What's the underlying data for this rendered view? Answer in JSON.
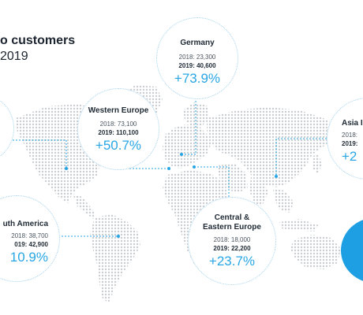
{
  "title": {
    "line1": "o customers",
    "line2": "2019"
  },
  "regions": [
    {
      "id": "germany",
      "name": "Germany",
      "y2018": "2018: 23,300",
      "y2019": "2019: 40,600",
      "change": "+73.9%"
    },
    {
      "id": "western-europe",
      "name": "Western Europe",
      "y2018": "2018:  73,100",
      "y2019": "2019: 110,100",
      "change": "+50.7%"
    },
    {
      "id": "asia",
      "name": "Asia I",
      "y2018": "2018:",
      "y2019": "2019:",
      "change": "+2"
    },
    {
      "id": "south-america",
      "name": "uth America",
      "y2018": "2018: 38,700",
      "y2019": "019: 42,900",
      "change": "10.9%"
    },
    {
      "id": "central-eastern-europe",
      "name_line1": "Central &",
      "name_line2": "Eastern Europe",
      "y2018": "2018: 18,000",
      "y2019": "2019: 22,200",
      "change": "+23.7%"
    }
  ],
  "colors": {
    "accent": "#28a6e4",
    "bubble_border": "#9fd0ee",
    "map_dots": "#c9cdd1",
    "connector": "#28a6e4",
    "blue_disc": "#1e9fe3"
  }
}
